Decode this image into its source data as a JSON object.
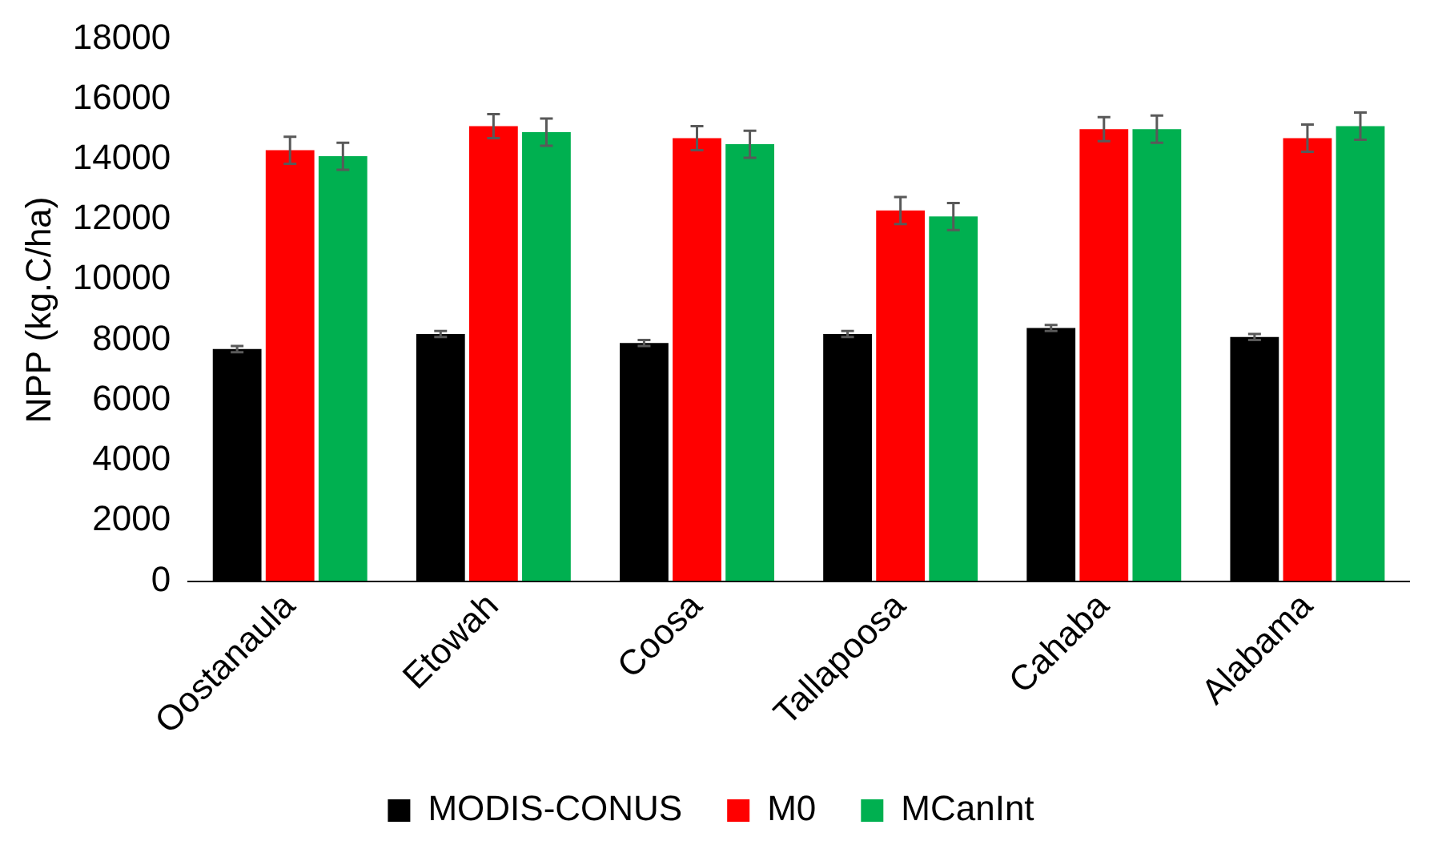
{
  "chart_data": {
    "type": "bar",
    "ylabel": "NPP (kg.C/ha)",
    "categories": [
      "Oostanaula",
      "Etowah",
      "Coosa",
      "Tallapoosa",
      "Cahaba",
      "Alabama"
    ],
    "series": [
      {
        "name": "MODIS-CONUS",
        "color": "#000000",
        "values": [
          7700,
          8200,
          7900,
          8200,
          8400,
          8100
        ],
        "errors": [
          100,
          100,
          100,
          100,
          100,
          100
        ]
      },
      {
        "name": "M0",
        "color": "#ff0000",
        "values": [
          14300,
          15100,
          14700,
          12300,
          15000,
          14700
        ],
        "errors": [
          450,
          400,
          400,
          450,
          400,
          450
        ]
      },
      {
        "name": "MCanInt",
        "color": "#00b050",
        "values": [
          14100,
          14900,
          14500,
          12100,
          15000,
          15100
        ],
        "errors": [
          450,
          450,
          450,
          450,
          450,
          450
        ]
      }
    ],
    "ylim": [
      0,
      18000
    ],
    "yticks": [
      0,
      2000,
      4000,
      6000,
      8000,
      10000,
      12000,
      14000,
      16000,
      18000
    ],
    "grid": false,
    "legend": "bottom"
  }
}
